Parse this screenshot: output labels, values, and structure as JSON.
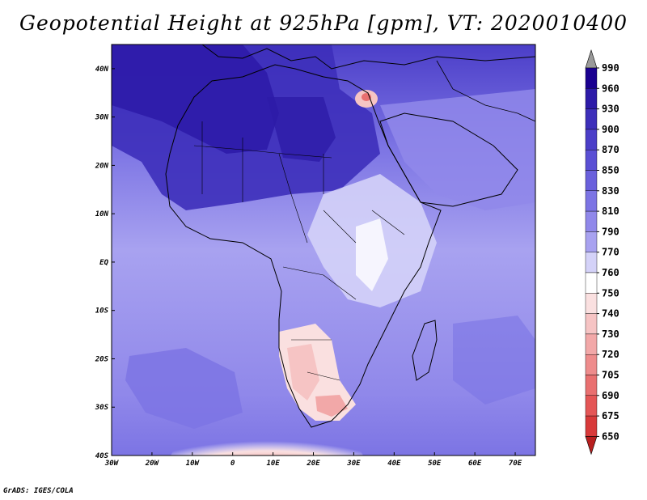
{
  "title": "Geopotential Height at 925hPa [gpm], VT: 2020010400",
  "footer": "GrADS: IGES/COLA",
  "map": {
    "region": "Africa",
    "variable": "Geopotential Height at 925hPa",
    "units": "gpm",
    "valid_time": "2020010400",
    "lon_range": [
      -30,
      75
    ],
    "lat_range": [
      -40,
      45
    ],
    "lon_ticks": [
      "30W",
      "20W",
      "10W",
      "0",
      "10E",
      "20E",
      "30E",
      "40E",
      "50E",
      "60E",
      "70E"
    ],
    "lat_ticks": [
      "40N",
      "30N",
      "20N",
      "10N",
      "EQ",
      "10S",
      "20S",
      "30S",
      "40S"
    ]
  },
  "colorbar": {
    "levels": [
      "990",
      "960",
      "930",
      "900",
      "870",
      "850",
      "830",
      "810",
      "790",
      "770",
      "760",
      "750",
      "740",
      "730",
      "720",
      "705",
      "690",
      "675",
      "650"
    ],
    "colors": [
      "#9a9a9a",
      "#1a0090",
      "#2d1ba8",
      "#3d2fba",
      "#4b3ec8",
      "#5a4fd4",
      "#6a60dc",
      "#7c74e4",
      "#9088ea",
      "#a8a2f0",
      "#d4d2f8",
      "#ffffff",
      "#fae0e0",
      "#f6c4c4",
      "#f2a8a8",
      "#ee8c8c",
      "#e97070",
      "#e45656",
      "#d83a3a",
      "#b81f1f"
    ]
  }
}
